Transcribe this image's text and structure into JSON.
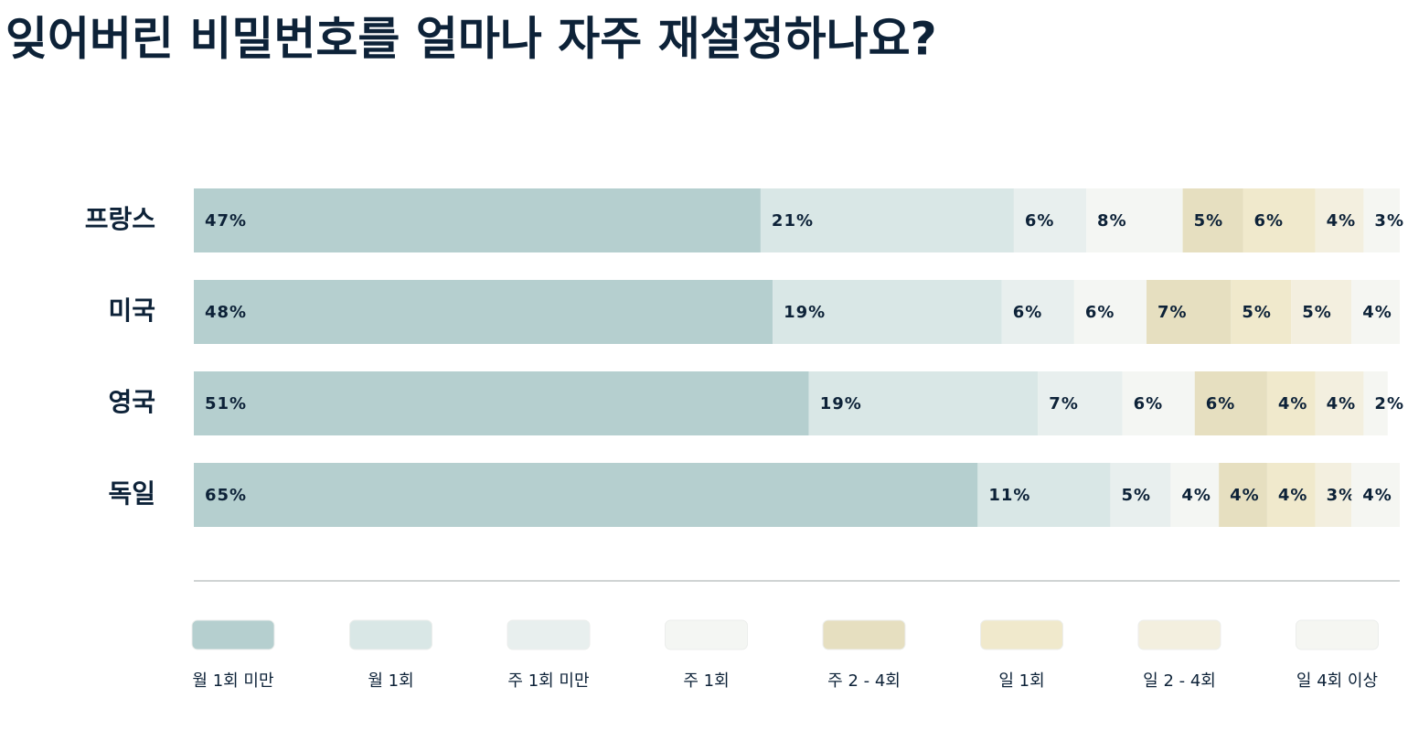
{
  "chart_data": {
    "type": "bar",
    "orientation": "horizontal",
    "stacked": true,
    "title": "잊어버린 비밀번호를 얼마나 자주 재설정하나요?",
    "categories": [
      "프랑스",
      "미국",
      "영국",
      "독일"
    ],
    "xlim": [
      0,
      100
    ],
    "series": [
      {
        "name": "월 1회 미만",
        "color": "#b5cfcf",
        "values": [
          47,
          48,
          51,
          65
        ],
        "value_labels": [
          "47%",
          "48%",
          "51%",
          "65%"
        ]
      },
      {
        "name": "월 1회",
        "color": "#d9e7e6",
        "values": [
          21,
          19,
          19,
          11
        ],
        "value_labels": [
          "21%",
          "19%",
          "19%",
          "11%"
        ]
      },
      {
        "name": "주 1회 미만",
        "color": "#e8efee",
        "values": [
          6,
          6,
          7,
          5
        ],
        "value_labels": [
          "6%",
          "6%",
          "7%",
          "5%"
        ]
      },
      {
        "name": "주 1회",
        "color": "#f4f6f3",
        "values": [
          8,
          6,
          6,
          4
        ],
        "value_labels": [
          "8%",
          "6%",
          "6%",
          "4%"
        ]
      },
      {
        "name": "주 2 - 4회",
        "color": "#e6dfc0",
        "values": [
          5,
          7,
          6,
          4
        ],
        "value_labels": [
          "5%",
          "7%",
          "6%",
          "4%"
        ]
      },
      {
        "name": "일 1회",
        "color": "#f0e9cc",
        "values": [
          6,
          5,
          4,
          4
        ],
        "value_labels": [
          "6%",
          "5%",
          "4%",
          "4%"
        ]
      },
      {
        "name": "일 2 - 4회",
        "color": "#f3efdf",
        "values": [
          4,
          5,
          4,
          3
        ],
        "value_labels": [
          "4%",
          "5%",
          "4%",
          "3%"
        ]
      },
      {
        "name": "일 4회 이상",
        "color": "#f5f6f2",
        "values": [
          3,
          4,
          2,
          4
        ],
        "value_labels": [
          "3%",
          "4%",
          "2%",
          "4%"
        ]
      }
    ]
  }
}
